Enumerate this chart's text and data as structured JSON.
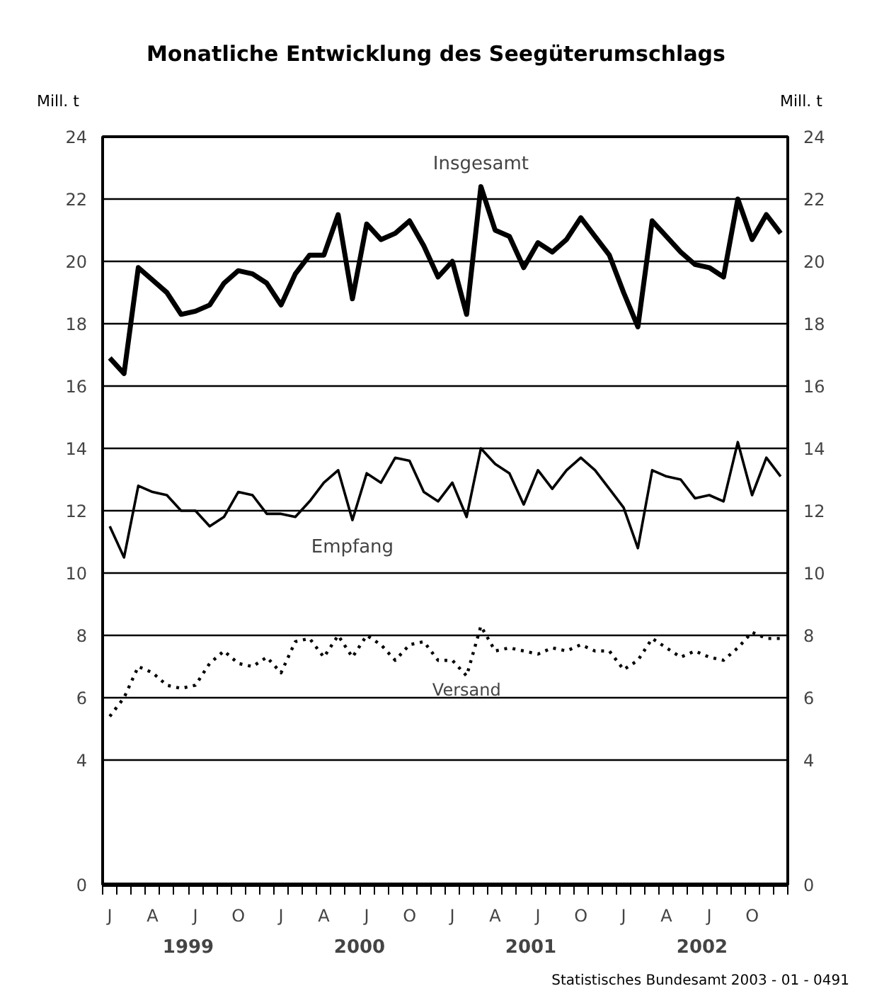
{
  "chart_data": {
    "type": "line",
    "title": "Monatliche Entwicklung des Seegüterumschlags",
    "ylabel": "Mill. t",
    "y2label": "Mill. t",
    "categories": [
      "J",
      null,
      null,
      "A",
      null,
      null,
      "J",
      null,
      null,
      "O",
      null,
      null,
      "J",
      null,
      null,
      "A",
      null,
      null,
      "J",
      null,
      null,
      "O",
      null,
      null,
      "J",
      null,
      null,
      "A",
      null,
      null,
      "J",
      null,
      null,
      "O",
      null,
      null,
      "J",
      null,
      null,
      "A",
      null,
      null,
      "J",
      null,
      null,
      "O",
      null,
      null
    ],
    "series": [
      {
        "name": "Insgesamt",
        "color": "#000000",
        "line_style": "solid",
        "values": [
          16.9,
          16.4,
          19.8,
          19.4,
          19.0,
          18.3,
          18.4,
          18.6,
          19.3,
          19.7,
          19.6,
          19.3,
          18.6,
          19.6,
          20.2,
          20.2,
          21.5,
          18.8,
          21.2,
          20.7,
          20.9,
          21.3,
          20.5,
          19.5,
          20.0,
          18.3,
          22.4,
          21.0,
          20.8,
          19.8,
          20.6,
          20.3,
          20.7,
          21.4,
          20.8,
          20.2,
          19.0,
          17.9,
          21.3,
          20.8,
          20.3,
          19.9,
          19.8,
          19.5,
          22.0,
          20.7,
          21.5,
          20.9
        ]
      },
      {
        "name": "Empfang",
        "color": "#000000",
        "line_style": "solid",
        "values": [
          11.5,
          10.5,
          12.8,
          12.6,
          12.5,
          12.0,
          12.0,
          11.5,
          11.8,
          12.6,
          12.5,
          11.9,
          11.9,
          11.8,
          12.3,
          12.9,
          13.3,
          11.7,
          13.2,
          12.9,
          13.7,
          13.6,
          12.6,
          12.3,
          12.9,
          11.8,
          14.0,
          13.5,
          13.2,
          12.2,
          13.3,
          12.7,
          13.3,
          13.7,
          13.3,
          12.7,
          12.1,
          10.8,
          13.3,
          13.1,
          13.0,
          12.4,
          12.5,
          12.3,
          14.2,
          12.5,
          13.7,
          13.1
        ]
      },
      {
        "name": "Versand",
        "color": "#000000",
        "line_style": "dotted",
        "values": [
          5.4,
          6.0,
          7.0,
          6.8,
          6.4,
          6.3,
          6.4,
          7.1,
          7.5,
          7.1,
          7.0,
          7.3,
          6.8,
          7.8,
          7.9,
          7.3,
          8.0,
          7.3,
          8.0,
          7.7,
          7.2,
          7.7,
          7.8,
          7.2,
          7.2,
          6.7,
          8.3,
          7.5,
          7.6,
          7.5,
          7.4,
          7.6,
          7.5,
          7.7,
          7.5,
          7.5,
          6.9,
          7.2,
          7.9,
          7.6,
          7.3,
          7.5,
          7.3,
          7.2,
          7.6,
          8.1,
          7.9,
          7.9
        ]
      }
    ],
    "ylim": [
      0,
      24
    ],
    "yticks": [
      0,
      4,
      6,
      8,
      10,
      12,
      14,
      16,
      18,
      20,
      22,
      24
    ],
    "y2lim": [
      0,
      24
    ],
    "y2ticks": [
      0,
      4,
      6,
      8,
      10,
      12,
      14,
      16,
      18,
      20,
      22,
      24
    ],
    "grid": "y",
    "annotations": [
      "1999",
      "2000",
      "2001",
      "2002",
      "Statistisches Bundesamt 2003 - 01 - 0491"
    ]
  }
}
